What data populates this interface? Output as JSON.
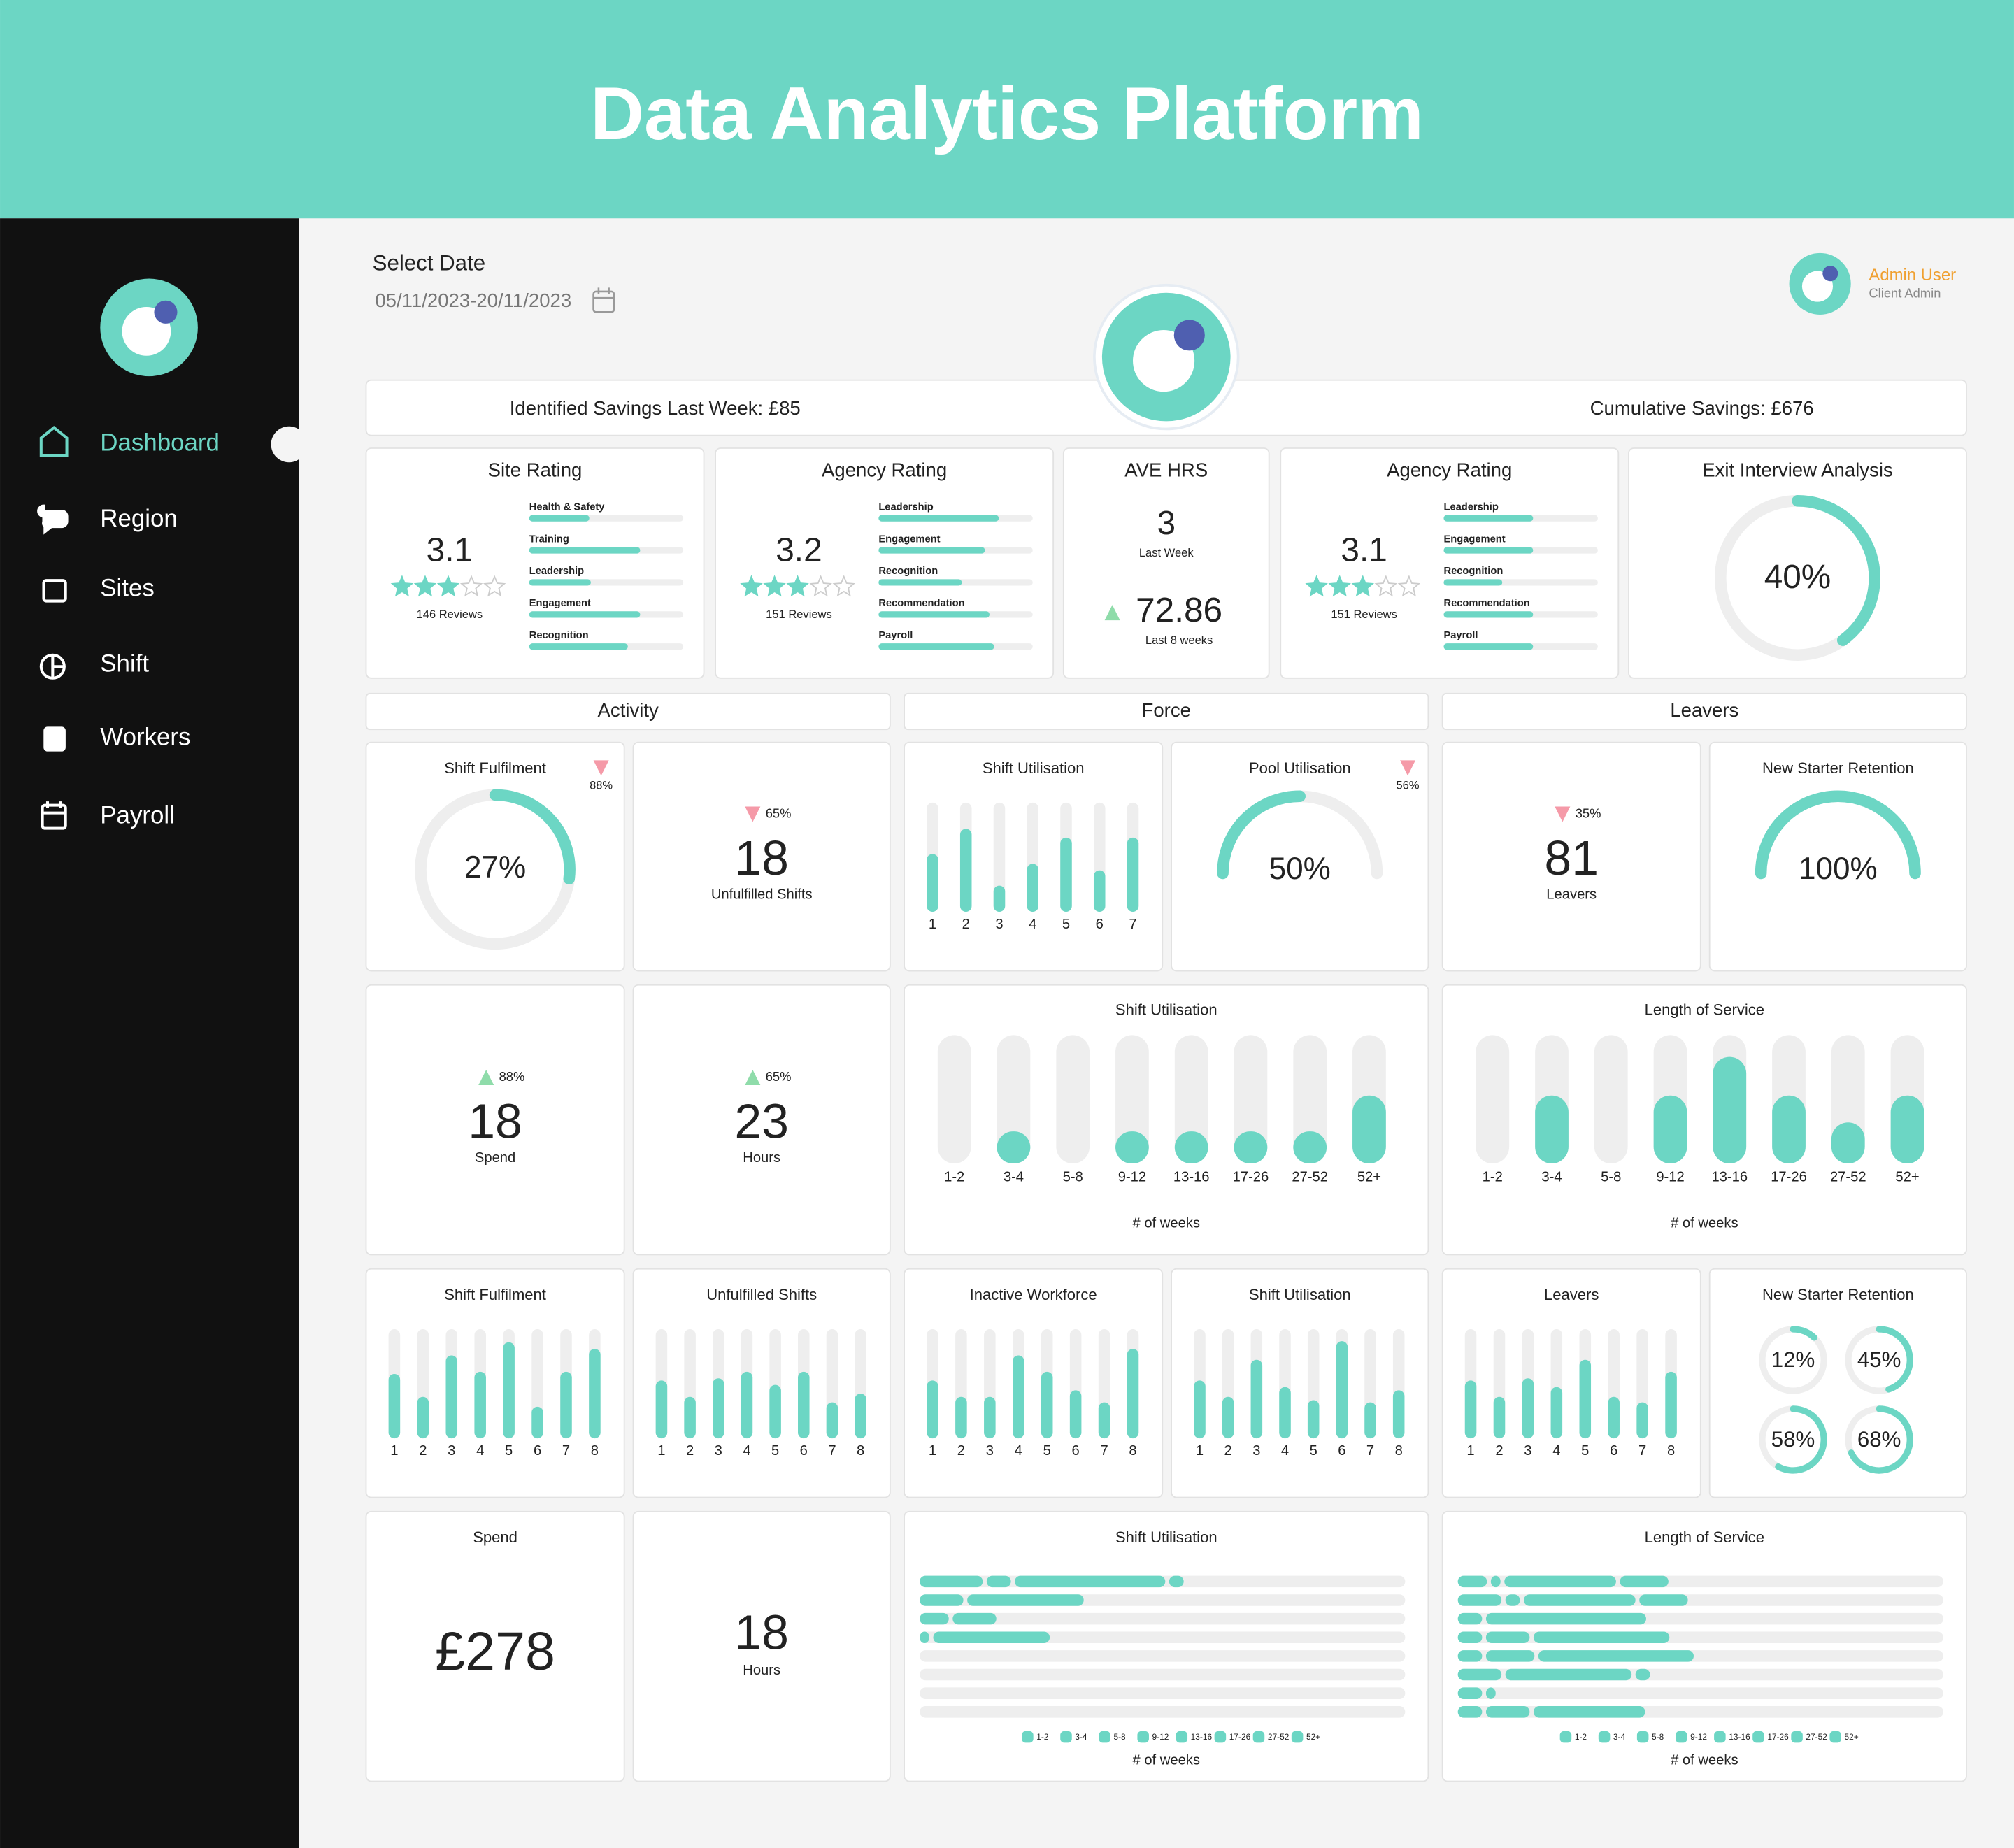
{
  "header": {
    "title": "Data Analytics Platform"
  },
  "sidebar": {
    "nav": [
      {
        "label": "Dashboard",
        "active": true
      },
      {
        "label": "Region"
      },
      {
        "label": "Sites"
      },
      {
        "label": "Shift"
      },
      {
        "label": "Workers"
      },
      {
        "label": "Payroll"
      }
    ]
  },
  "date": {
    "label": "Select Date",
    "range": "05/11/2023-20/11/2023"
  },
  "user": {
    "name": "Admin User",
    "role": "Client Admin"
  },
  "savings": {
    "last_week": "Identified Savings Last Week: £85",
    "cumulative": "Cumulative Savings: £676"
  },
  "ratings": [
    {
      "type": "rating",
      "title": "Site Rating",
      "score": 3.1,
      "stars": 3,
      "reviews": "146 Reviews",
      "items": [
        {
          "label": "Health & Safety",
          "value": 0.39
        },
        {
          "label": "Training",
          "value": 0.72
        },
        {
          "label": "Leadership",
          "value": 0.4
        },
        {
          "label": "Engagement",
          "value": 0.72
        },
        {
          "label": "Recognition",
          "value": 0.64
        }
      ]
    },
    {
      "type": "rating",
      "title": "Agency Rating",
      "score": 3.2,
      "stars": 3,
      "reviews": "151 Reviews",
      "items": [
        {
          "label": "Leadership",
          "value": 0.78
        },
        {
          "label": "Engagement",
          "value": 0.69
        },
        {
          "label": "Recognition",
          "value": 0.54
        },
        {
          "label": "Recommendation",
          "value": 0.72
        },
        {
          "label": "Payroll",
          "value": 0.75
        }
      ]
    },
    {
      "type": "hours",
      "title": "AVE HRS",
      "value": 3,
      "caption": "Last Week",
      "average": 72.86,
      "average_caption": "Last 8 weeks",
      "trend": "up"
    },
    {
      "type": "rating",
      "title": "Agency Rating",
      "score": 3.1,
      "stars": 3,
      "reviews": "151 Reviews",
      "items": [
        {
          "label": "Leadership",
          "value": 0.58
        },
        {
          "label": "Engagement",
          "value": 0.58
        },
        {
          "label": "Recognition",
          "value": 0.38
        },
        {
          "label": "Recommendation",
          "value": 0.58
        },
        {
          "label": "Payroll",
          "value": 0.58
        }
      ]
    },
    {
      "type": "ring",
      "title": "Exit Interview Analysis",
      "value": 40,
      "value_label": "40%"
    }
  ],
  "sections": [
    "Activity",
    "Force",
    "Leavers"
  ],
  "rows": [
    [
      {
        "type": "gauge",
        "title": "Shift Fulfilment",
        "value": 27,
        "value_label": "27%",
        "change": "88%",
        "trend": "down"
      },
      {
        "type": "stat",
        "value": 18,
        "caption": "Unfulfilled Shifts",
        "change": "65%",
        "trend": "down"
      },
      {
        "type": "bars",
        "title": "Shift Utilisation",
        "categories": [
          "1",
          "2",
          "3",
          "4",
          "5",
          "6",
          "7"
        ],
        "values": [
          0.53,
          0.76,
          0.24,
          0.44,
          0.68,
          0.38,
          0.68
        ]
      },
      {
        "type": "semi",
        "title": "Pool Utilisation",
        "value": 50,
        "value_label": "50%",
        "change": "56%",
        "trend": "down"
      },
      {
        "type": "stat",
        "value": 81,
        "caption": "Leavers",
        "change": "35%",
        "trend": "down"
      },
      {
        "type": "semi",
        "title": "New Starter Retention",
        "value": 100,
        "value_label": "100%"
      }
    ],
    [
      {
        "type": "stat",
        "value": 18,
        "caption": "Spend",
        "change": "88%",
        "trend": "up"
      },
      {
        "type": "stat",
        "value": 23,
        "caption": "Hours",
        "change": "65%",
        "trend": "up"
      },
      {
        "type": "pills",
        "title": "Shift Utilisation",
        "categories": [
          "1-2",
          "3-4",
          "5-8",
          "9-12",
          "13-16",
          "17-26",
          "27-52",
          "52+"
        ],
        "values": [
          0,
          0.25,
          0,
          0.25,
          0.25,
          0.25,
          0.25,
          0.53
        ],
        "xlabel": "# of weeks"
      },
      {
        "type": "pills",
        "title": "Length of Service",
        "categories": [
          "1-2",
          "3-4",
          "5-8",
          "9-12",
          "13-16",
          "17-26",
          "27-52",
          "52+"
        ],
        "values": [
          0,
          0.53,
          0,
          0.53,
          0.83,
          0.53,
          0.32,
          0.53
        ],
        "xlabel": "# of weeks"
      }
    ],
    [
      {
        "type": "bars",
        "title": "Shift Fulfilment",
        "categories": [
          "1",
          "2",
          "3",
          "4",
          "5",
          "6",
          "7",
          "8"
        ],
        "values": [
          0.59,
          0.38,
          0.76,
          0.61,
          0.88,
          0.29,
          0.61,
          0.82
        ]
      },
      {
        "type": "bars",
        "title": "Unfulfilled Shifts",
        "categories": [
          "1",
          "2",
          "3",
          "4",
          "5",
          "6",
          "7",
          "8"
        ],
        "values": [
          0.53,
          0.38,
          0.55,
          0.61,
          0.49,
          0.61,
          0.33,
          0.41
        ]
      },
      {
        "type": "bars",
        "title": "Inactive Workforce",
        "categories": [
          "1",
          "2",
          "3",
          "4",
          "5",
          "6",
          "7",
          "8"
        ],
        "values": [
          0.53,
          0.38,
          0.38,
          0.76,
          0.61,
          0.44,
          0.33,
          0.82
        ]
      },
      {
        "type": "bars",
        "title": "Shift Utilisation",
        "categories": [
          "1",
          "2",
          "3",
          "4",
          "5",
          "6",
          "7",
          "8"
        ],
        "values": [
          0.53,
          0.38,
          0.72,
          0.47,
          0.35,
          0.89,
          0.33,
          0.44
        ]
      },
      {
        "type": "bars",
        "title": "Leavers",
        "categories": [
          "1",
          "2",
          "3",
          "4",
          "5",
          "6",
          "7",
          "8"
        ],
        "values": [
          0.53,
          0.38,
          0.55,
          0.47,
          0.72,
          0.38,
          0.33,
          0.61
        ]
      },
      {
        "type": "rings",
        "title": "New Starter Retention",
        "values": [
          12,
          45,
          58,
          68
        ],
        "value_labels": [
          "12%",
          "45%",
          "58%",
          "68%"
        ]
      }
    ],
    [
      {
        "type": "money",
        "title": "Spend",
        "value": "£278"
      },
      {
        "type": "stat",
        "value": 18,
        "caption": "Hours"
      },
      {
        "type": "hbars",
        "title": "Shift Utilisation",
        "rows": [
          [
            0.13,
            0.05,
            0.31,
            0.03
          ],
          [
            0.09,
            0.24
          ],
          [
            0.06,
            0.09
          ],
          [
            0.02,
            0.24
          ],
          [],
          [],
          [],
          []
        ],
        "legend": [
          "1-2",
          "3-4",
          "5-8",
          "9-12",
          "13-16",
          "17-26",
          "27-52",
          "52+"
        ],
        "xlabel": "# of weeks"
      },
      {
        "type": "hbars",
        "title": "Length of Service",
        "rows": [
          [
            0.06,
            0.02,
            0.23,
            0.1
          ],
          [
            0.09,
            0.03,
            0.23,
            0.1
          ],
          [
            0.05,
            0.33
          ],
          [
            0.05,
            0.09,
            0.28
          ],
          [
            0.05,
            0.1,
            0.32
          ],
          [
            0.09,
            0.26,
            0.03
          ],
          [
            0.05,
            0.02
          ],
          [
            0.05,
            0.09,
            0.23
          ]
        ],
        "legend": [
          "1-2",
          "3-4",
          "5-8",
          "9-12",
          "13-16",
          "17-26",
          "27-52",
          "52+"
        ],
        "xlabel": "# of weeks"
      }
    ]
  ]
}
